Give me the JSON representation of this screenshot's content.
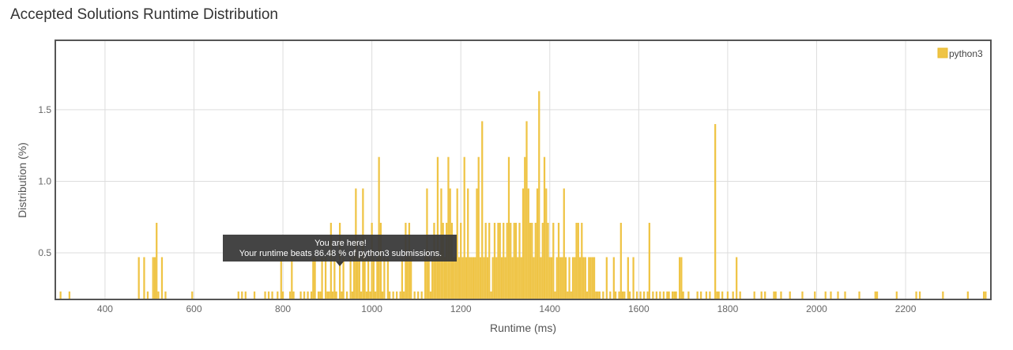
{
  "page": {
    "title": "Accepted Solutions Runtime Distribution"
  },
  "colors": {
    "bar": "#EFC445",
    "bar_stroke": "#E8BA2E",
    "grid": "#dddddd",
    "frame": "#555555",
    "tooltip_bg": "#3a3a3a"
  },
  "tooltip": {
    "line1": "You are here!",
    "line2": "Your runtime beats 86.48 % of python3 submissions.",
    "at_x": 930
  },
  "chart_data": {
    "type": "bar",
    "title": "Accepted Solutions Runtime Distribution",
    "xlabel": "Runtime (ms)",
    "ylabel": "Distribution (%)",
    "xlim": [
      290,
      2390
    ],
    "ylim": [
      0.18,
      1.98
    ],
    "baseline": 0.18,
    "bin_width": 4,
    "xticks": [
      400,
      600,
      800,
      1000,
      1200,
      1400,
      1600,
      1800,
      2000,
      2200
    ],
    "yticks": [
      0.5,
      1.0,
      1.5
    ],
    "ytick_labels": [
      "0.5",
      "1.0",
      "1.5"
    ],
    "grid": true,
    "legend_position": "top-right",
    "series": [
      {
        "name": "python3",
        "points": [
          [
            300,
            0.23
          ],
          [
            320,
            0.23
          ],
          [
            476,
            0.47
          ],
          [
            488,
            0.47
          ],
          [
            496,
            0.23
          ],
          [
            508,
            0.47
          ],
          [
            512,
            0.47
          ],
          [
            516,
            0.71
          ],
          [
            520,
            0.23
          ],
          [
            528,
            0.47
          ],
          [
            536,
            0.23
          ],
          [
            596,
            0.23
          ],
          [
            700,
            0.23
          ],
          [
            708,
            0.23
          ],
          [
            716,
            0.23
          ],
          [
            736,
            0.23
          ],
          [
            760,
            0.23
          ],
          [
            768,
            0.23
          ],
          [
            776,
            0.23
          ],
          [
            788,
            0.23
          ],
          [
            796,
            0.47
          ],
          [
            800,
            0.23
          ],
          [
            816,
            0.23
          ],
          [
            820,
            0.47
          ],
          [
            824,
            0.23
          ],
          [
            840,
            0.23
          ],
          [
            848,
            0.23
          ],
          [
            856,
            0.23
          ],
          [
            864,
            0.23
          ],
          [
            868,
            0.47
          ],
          [
            872,
            0.47
          ],
          [
            880,
            0.23
          ],
          [
            884,
            0.23
          ],
          [
            888,
            0.47
          ],
          [
            896,
            0.47
          ],
          [
            900,
            0.23
          ],
          [
            904,
            0.23
          ],
          [
            908,
            0.71
          ],
          [
            912,
            0.23
          ],
          [
            916,
            0.47
          ],
          [
            920,
            0.23
          ],
          [
            928,
            0.71
          ],
          [
            932,
            0.23
          ],
          [
            936,
            0.47
          ],
          [
            944,
            0.23
          ],
          [
            952,
            0.47
          ],
          [
            956,
            0.23
          ],
          [
            960,
            0.47
          ],
          [
            964,
            0.95
          ],
          [
            968,
            0.47
          ],
          [
            972,
            0.47
          ],
          [
            976,
            0.23
          ],
          [
            980,
            0.95
          ],
          [
            984,
            0.47
          ],
          [
            988,
            0.23
          ],
          [
            992,
            0.47
          ],
          [
            996,
            0.23
          ],
          [
            1000,
            0.71
          ],
          [
            1004,
            0.47
          ],
          [
            1008,
            0.23
          ],
          [
            1012,
            0.47
          ],
          [
            1016,
            1.17
          ],
          [
            1020,
            0.71
          ],
          [
            1024,
            0.23
          ],
          [
            1028,
            0.47
          ],
          [
            1036,
            0.47
          ],
          [
            1040,
            0.23
          ],
          [
            1048,
            0.23
          ],
          [
            1056,
            0.23
          ],
          [
            1064,
            0.23
          ],
          [
            1068,
            0.47
          ],
          [
            1072,
            0.23
          ],
          [
            1076,
            0.71
          ],
          [
            1080,
            0.47
          ],
          [
            1084,
            0.71
          ],
          [
            1088,
            0.47
          ],
          [
            1096,
            0.23
          ],
          [
            1104,
            0.23
          ],
          [
            1112,
            0.23
          ],
          [
            1120,
            0.47
          ],
          [
            1124,
            0.95
          ],
          [
            1128,
            0.47
          ],
          [
            1132,
            0.23
          ],
          [
            1136,
            0.47
          ],
          [
            1140,
            0.71
          ],
          [
            1144,
            0.47
          ],
          [
            1148,
            1.17
          ],
          [
            1152,
            0.47
          ],
          [
            1156,
            0.95
          ],
          [
            1160,
            0.71
          ],
          [
            1164,
            0.47
          ],
          [
            1168,
            0.71
          ],
          [
            1172,
            1.17
          ],
          [
            1176,
            0.95
          ],
          [
            1180,
            0.71
          ],
          [
            1184,
            0.47
          ],
          [
            1188,
            0.47
          ],
          [
            1192,
            0.95
          ],
          [
            1196,
            0.47
          ],
          [
            1200,
            0.71
          ],
          [
            1204,
            0.47
          ],
          [
            1208,
            1.17
          ],
          [
            1212,
            0.47
          ],
          [
            1216,
            0.95
          ],
          [
            1220,
            0.47
          ],
          [
            1224,
            0.47
          ],
          [
            1228,
            0.47
          ],
          [
            1232,
            0.47
          ],
          [
            1236,
            0.95
          ],
          [
            1240,
            1.17
          ],
          [
            1244,
            0.47
          ],
          [
            1248,
            1.42
          ],
          [
            1252,
            0.47
          ],
          [
            1256,
            0.71
          ],
          [
            1260,
            0.47
          ],
          [
            1264,
            0.71
          ],
          [
            1268,
            0.23
          ],
          [
            1272,
            0.47
          ],
          [
            1276,
            0.71
          ],
          [
            1280,
            0.47
          ],
          [
            1284,
            0.71
          ],
          [
            1288,
            0.71
          ],
          [
            1292,
            0.47
          ],
          [
            1296,
            0.71
          ],
          [
            1300,
            0.47
          ],
          [
            1304,
            0.71
          ],
          [
            1308,
            1.17
          ],
          [
            1312,
            0.71
          ],
          [
            1316,
            0.47
          ],
          [
            1320,
            0.71
          ],
          [
            1324,
            0.71
          ],
          [
            1328,
            0.47
          ],
          [
            1332,
            0.71
          ],
          [
            1336,
            0.47
          ],
          [
            1340,
            0.95
          ],
          [
            1344,
            1.17
          ],
          [
            1348,
            1.42
          ],
          [
            1352,
            0.95
          ],
          [
            1356,
            0.71
          ],
          [
            1360,
            0.71
          ],
          [
            1364,
            0.47
          ],
          [
            1368,
            0.71
          ],
          [
            1372,
            0.95
          ],
          [
            1376,
            1.63
          ],
          [
            1380,
            0.47
          ],
          [
            1384,
            0.71
          ],
          [
            1388,
            1.17
          ],
          [
            1392,
            0.95
          ],
          [
            1396,
            0.71
          ],
          [
            1400,
            0.47
          ],
          [
            1404,
            0.47
          ],
          [
            1408,
            0.71
          ],
          [
            1412,
            0.23
          ],
          [
            1416,
            0.47
          ],
          [
            1420,
            0.71
          ],
          [
            1424,
            0.47
          ],
          [
            1428,
            0.47
          ],
          [
            1432,
            0.95
          ],
          [
            1436,
            0.47
          ],
          [
            1440,
            0.23
          ],
          [
            1444,
            0.47
          ],
          [
            1448,
            0.23
          ],
          [
            1452,
            0.47
          ],
          [
            1456,
            0.47
          ],
          [
            1460,
            0.71
          ],
          [
            1464,
            0.71
          ],
          [
            1468,
            0.47
          ],
          [
            1472,
            0.71
          ],
          [
            1476,
            0.47
          ],
          [
            1480,
            0.47
          ],
          [
            1484,
            0.23
          ],
          [
            1488,
            0.47
          ],
          [
            1492,
            0.47
          ],
          [
            1496,
            0.47
          ],
          [
            1500,
            0.47
          ],
          [
            1504,
            0.23
          ],
          [
            1508,
            0.23
          ],
          [
            1512,
            0.23
          ],
          [
            1520,
            0.23
          ],
          [
            1528,
            0.47
          ],
          [
            1536,
            0.23
          ],
          [
            1544,
            0.47
          ],
          [
            1548,
            0.23
          ],
          [
            1556,
            0.23
          ],
          [
            1560,
            0.71
          ],
          [
            1564,
            0.23
          ],
          [
            1568,
            0.23
          ],
          [
            1576,
            0.47
          ],
          [
            1580,
            0.23
          ],
          [
            1588,
            0.47
          ],
          [
            1596,
            0.23
          ],
          [
            1604,
            0.23
          ],
          [
            1612,
            0.23
          ],
          [
            1620,
            0.23
          ],
          [
            1624,
            0.71
          ],
          [
            1632,
            0.23
          ],
          [
            1640,
            0.23
          ],
          [
            1648,
            0.23
          ],
          [
            1656,
            0.23
          ],
          [
            1664,
            0.23
          ],
          [
            1668,
            0.23
          ],
          [
            1676,
            0.23
          ],
          [
            1680,
            0.23
          ],
          [
            1684,
            0.23
          ],
          [
            1692,
            0.47
          ],
          [
            1696,
            0.47
          ],
          [
            1700,
            0.23
          ],
          [
            1712,
            0.23
          ],
          [
            1732,
            0.23
          ],
          [
            1740,
            0.23
          ],
          [
            1752,
            0.23
          ],
          [
            1760,
            0.23
          ],
          [
            1772,
            1.4
          ],
          [
            1776,
            0.23
          ],
          [
            1780,
            0.23
          ],
          [
            1788,
            0.23
          ],
          [
            1800,
            0.23
          ],
          [
            1812,
            0.23
          ],
          [
            1820,
            0.47
          ],
          [
            1828,
            0.23
          ],
          [
            1860,
            0.23
          ],
          [
            1876,
            0.23
          ],
          [
            1884,
            0.23
          ],
          [
            1904,
            0.23
          ],
          [
            1908,
            0.23
          ],
          [
            1920,
            0.23
          ],
          [
            1940,
            0.23
          ],
          [
            1968,
            0.23
          ],
          [
            1996,
            0.23
          ],
          [
            2020,
            0.23
          ],
          [
            2032,
            0.23
          ],
          [
            2048,
            0.23
          ],
          [
            2064,
            0.23
          ],
          [
            2096,
            0.23
          ],
          [
            2132,
            0.23
          ],
          [
            2136,
            0.23
          ],
          [
            2180,
            0.23
          ],
          [
            2224,
            0.23
          ],
          [
            2232,
            0.23
          ],
          [
            2284,
            0.23
          ],
          [
            2340,
            0.23
          ],
          [
            2376,
            0.23
          ],
          [
            2380,
            0.23
          ]
        ]
      }
    ]
  }
}
